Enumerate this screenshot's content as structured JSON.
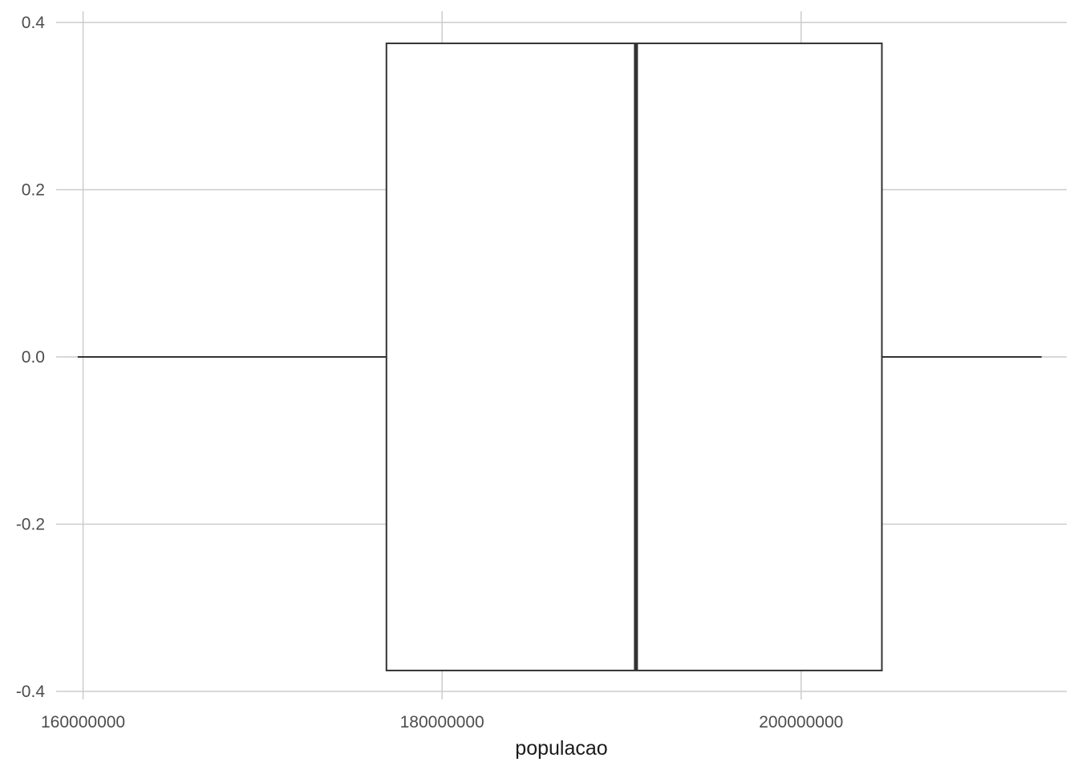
{
  "chart_data": {
    "type": "boxplot",
    "title": "",
    "xlabel": "populacao",
    "ylabel": "",
    "xlim": [
      158500000,
      214800000
    ],
    "ylim": [
      -0.4,
      0.4
    ],
    "x_ticks": [
      160000000,
      180000000,
      200000000
    ],
    "x_tick_labels": [
      "160000000",
      "180000000",
      "200000000"
    ],
    "y_ticks": [
      -0.4,
      -0.2,
      0.0,
      0.2,
      0.4
    ],
    "y_tick_labels": [
      "-0.4",
      "-0.2",
      "0.0",
      "0.2",
      "0.4"
    ],
    "grid": true,
    "box": {
      "min": 159700000,
      "q1": 176900000,
      "median": 190800000,
      "q3": 204500000,
      "max": 213400000,
      "y_center": 0.0,
      "half_width": 0.375
    }
  }
}
